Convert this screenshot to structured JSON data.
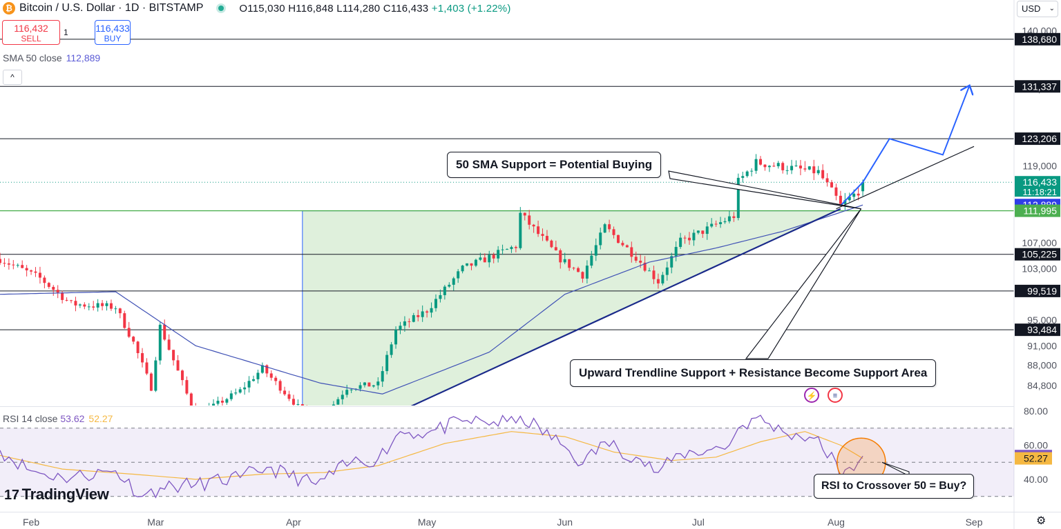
{
  "header": {
    "symbol": "Bitcoin / U.S. Dollar · 1D · BITSTAMP",
    "coin_icon": "bitcoin-icon",
    "open": "O115,030",
    "high": "H116,848",
    "low": "L114,280",
    "close": "C116,433",
    "change": "+1,403 (+1.22%)"
  },
  "trade": {
    "sell_price": "116,432",
    "sell_label": "SELL",
    "buy_price": "116,433",
    "buy_label": "BUY",
    "quantity": "1"
  },
  "indicators": {
    "sma_label": "SMA 50 close",
    "sma_value": "112,889",
    "rsi_label": "RSI 14 close",
    "rsi_value": "53.62",
    "rsi_ma_value": "52.27",
    "collapse_glyph": "^"
  },
  "currency": "USD",
  "branding": {
    "logo_text": "TradingView",
    "logo_mark": "17"
  },
  "annotations": {
    "sma_support": "50 SMA Support = Potential Buying",
    "trend_support": "Upward Trendline Support + Resistance Become Support Area",
    "rsi_cross": "RSI to Crossover 50 = Buy?"
  },
  "colors": {
    "up": "#089981",
    "down": "#f23645",
    "sma": "#3f51b5",
    "rsi": "#7e57c2",
    "rsi_ma": "#f5b842",
    "triangle_fill": "#dff0dc",
    "green_line": "#4caf50",
    "arrow": "#2962ff"
  },
  "chart_data": [
    {
      "type": "candlestick",
      "x_axis": {
        "start": "2025-01-25",
        "end": "2025-09-10",
        "tick_labels": [
          "Feb",
          "Mar",
          "Apr",
          "May",
          "Jun",
          "Jul",
          "Aug",
          "Sep"
        ],
        "tick_dates": [
          "2025-02-01",
          "2025-03-01",
          "2025-04-01",
          "2025-05-01",
          "2025-06-01",
          "2025-07-01",
          "2025-08-01",
          "2025-09-01"
        ]
      },
      "y_axis": {
        "tick_labels": [
          "140,000",
          "131,000",
          "123,000",
          "119,000",
          "107,000",
          "103,000",
          "95,000",
          "91,000",
          "88,000",
          "84,800"
        ],
        "visible_range": [
          81700,
          142200
        ]
      },
      "grid": false,
      "last_price": {
        "value": "116,433",
        "countdown": "11:18:21"
      },
      "horizontal_levels": [
        {
          "label": "138,680",
          "value": 138680,
          "color": "black"
        },
        {
          "label": "131,337",
          "value": 131337,
          "color": "black"
        },
        {
          "label": "123,206",
          "value": 123206,
          "color": "black"
        },
        {
          "label": "112,889",
          "value": 112889,
          "color": "blue",
          "name": "SMA 50"
        },
        {
          "label": "111,995",
          "value": 111995,
          "color": "green"
        },
        {
          "label": "105,225",
          "value": 105225,
          "color": "black"
        },
        {
          "label": "99,519",
          "value": 99519,
          "color": "black"
        },
        {
          "label": "93,484",
          "value": 93484,
          "color": "black"
        }
      ],
      "anchors": [
        {
          "date": "2025-01-25",
          "close": 104500
        },
        {
          "date": "2025-02-03",
          "close": 101500
        },
        {
          "date": "2025-02-10",
          "close": 97500
        },
        {
          "date": "2025-02-20",
          "close": 97000
        },
        {
          "date": "2025-02-24",
          "close": 91500
        },
        {
          "date": "2025-02-28",
          "close": 84500
        },
        {
          "date": "2025-03-02",
          "close": 94000
        },
        {
          "date": "2025-03-10",
          "close": 80000
        },
        {
          "date": "2025-03-20",
          "close": 84000
        },
        {
          "date": "2025-03-25",
          "close": 87500
        },
        {
          "date": "2025-04-06",
          "close": 78500
        },
        {
          "date": "2025-04-13",
          "close": 84500
        },
        {
          "date": "2025-04-20",
          "close": 85000
        },
        {
          "date": "2025-04-24",
          "close": 93500
        },
        {
          "date": "2025-05-01",
          "close": 96500
        },
        {
          "date": "2025-05-09",
          "close": 103000
        },
        {
          "date": "2025-05-21",
          "close": 106500
        },
        {
          "date": "2025-05-22",
          "close": 111500
        },
        {
          "date": "2025-05-31",
          "close": 104500
        },
        {
          "date": "2025-06-05",
          "close": 102000
        },
        {
          "date": "2025-06-10",
          "close": 109500
        },
        {
          "date": "2025-06-17",
          "close": 104800
        },
        {
          "date": "2025-06-22",
          "close": 101000
        },
        {
          "date": "2025-06-27",
          "close": 107200
        },
        {
          "date": "2025-07-02",
          "close": 108800
        },
        {
          "date": "2025-07-09",
          "close": 111200
        },
        {
          "date": "2025-07-10",
          "close": 116500
        },
        {
          "date": "2025-07-14",
          "close": 119500
        },
        {
          "date": "2025-07-23",
          "close": 118500
        },
        {
          "date": "2025-07-28",
          "close": 118000
        },
        {
          "date": "2025-08-01",
          "close": 114000
        },
        {
          "date": "2025-08-02",
          "close": 112800
        },
        {
          "date": "2025-08-06",
          "close": 115030
        },
        {
          "date": "2025-08-07",
          "close": 116433
        }
      ],
      "sma50": [
        {
          "date": "2025-01-25",
          "value": 99000
        },
        {
          "date": "2025-02-20",
          "value": 99400
        },
        {
          "date": "2025-03-10",
          "value": 91000
        },
        {
          "date": "2025-04-07",
          "value": 85200
        },
        {
          "date": "2025-04-21",
          "value": 83500
        },
        {
          "date": "2025-05-15",
          "value": 90000
        },
        {
          "date": "2025-06-01",
          "value": 99000
        },
        {
          "date": "2025-06-20",
          "value": 104000
        },
        {
          "date": "2025-07-05",
          "value": 106200
        },
        {
          "date": "2025-07-20",
          "value": 108800
        },
        {
          "date": "2025-08-07",
          "value": 112889
        }
      ],
      "accumulation_triangle": {
        "top_price": 111995,
        "start_date": "2025-04-03",
        "apex_date": "2025-08-02"
      },
      "trendlines": [
        {
          "from": {
            "date": "2025-04-24",
            "value": 80500
          },
          "to": {
            "date": "2025-08-02",
            "value": 112300
          },
          "color": "navy"
        },
        {
          "from": {
            "date": "2025-08-01",
            "value": 112300
          },
          "to": {
            "date": "2025-09-01",
            "value": 122000
          },
          "color": "black"
        }
      ],
      "projection": [
        {
          "date": "2025-08-02",
          "value": 112800
        },
        {
          "date": "2025-08-07",
          "value": 116433
        },
        {
          "date": "2025-08-13",
          "value": 123200
        },
        {
          "date": "2025-08-25",
          "value": 120700
        },
        {
          "date": "2025-08-31",
          "value": 131500
        }
      ]
    },
    {
      "type": "line",
      "title": "RSI 14 close",
      "y_axis": {
        "tick_labels": [
          "80.00",
          "60.00",
          "40.00"
        ],
        "visible_range": [
          21,
          82
        ]
      },
      "bands": {
        "upper": 70,
        "middle": 50,
        "lower": 30
      },
      "series": [
        {
          "name": "RSI",
          "points": [
            {
              "date": "2025-01-25",
              "value": 57
            },
            {
              "date": "2025-02-01",
              "value": 45
            },
            {
              "date": "2025-02-08",
              "value": 41
            },
            {
              "date": "2025-02-20",
              "value": 45
            },
            {
              "date": "2025-02-26",
              "value": 30
            },
            {
              "date": "2025-03-02",
              "value": 35
            },
            {
              "date": "2025-03-10",
              "value": 37
            },
            {
              "date": "2025-03-20",
              "value": 41
            },
            {
              "date": "2025-03-26",
              "value": 47
            },
            {
              "date": "2025-04-06",
              "value": 37
            },
            {
              "date": "2025-04-14",
              "value": 50
            },
            {
              "date": "2025-04-20",
              "value": 52
            },
            {
              "date": "2025-04-25",
              "value": 68
            },
            {
              "date": "2025-05-01",
              "value": 67
            },
            {
              "date": "2025-05-09",
              "value": 74
            },
            {
              "date": "2025-05-21",
              "value": 73
            },
            {
              "date": "2025-05-22",
              "value": 77
            },
            {
              "date": "2025-06-01",
              "value": 59
            },
            {
              "date": "2025-06-05",
              "value": 49
            },
            {
              "date": "2025-06-10",
              "value": 62
            },
            {
              "date": "2025-06-17",
              "value": 53
            },
            {
              "date": "2025-06-22",
              "value": 44
            },
            {
              "date": "2025-06-27",
              "value": 55
            },
            {
              "date": "2025-07-03",
              "value": 57
            },
            {
              "date": "2025-07-08",
              "value": 60
            },
            {
              "date": "2025-07-10",
              "value": 70
            },
            {
              "date": "2025-07-14",
              "value": 76
            },
            {
              "date": "2025-07-20",
              "value": 68
            },
            {
              "date": "2025-07-27",
              "value": 64
            },
            {
              "date": "2025-08-01",
              "value": 50
            },
            {
              "date": "2025-08-02",
              "value": 40
            },
            {
              "date": "2025-08-06",
              "value": 50
            },
            {
              "date": "2025-08-07",
              "value": 53.62
            }
          ]
        },
        {
          "name": "RSI MA",
          "points": [
            {
              "date": "2025-01-25",
              "value": 54
            },
            {
              "date": "2025-02-08",
              "value": 46
            },
            {
              "date": "2025-02-24",
              "value": 43
            },
            {
              "date": "2025-03-10",
              "value": 40
            },
            {
              "date": "2025-03-25",
              "value": 43
            },
            {
              "date": "2025-04-08",
              "value": 44
            },
            {
              "date": "2025-04-20",
              "value": 48
            },
            {
              "date": "2025-05-05",
              "value": 61
            },
            {
              "date": "2025-05-20",
              "value": 68
            },
            {
              "date": "2025-06-01",
              "value": 65
            },
            {
              "date": "2025-06-12",
              "value": 56
            },
            {
              "date": "2025-06-25",
              "value": 51
            },
            {
              "date": "2025-07-05",
              "value": 53
            },
            {
              "date": "2025-07-15",
              "value": 62
            },
            {
              "date": "2025-07-25",
              "value": 68
            },
            {
              "date": "2025-08-02",
              "value": 60
            },
            {
              "date": "2025-08-07",
              "value": 52.27
            }
          ]
        }
      ]
    }
  ]
}
